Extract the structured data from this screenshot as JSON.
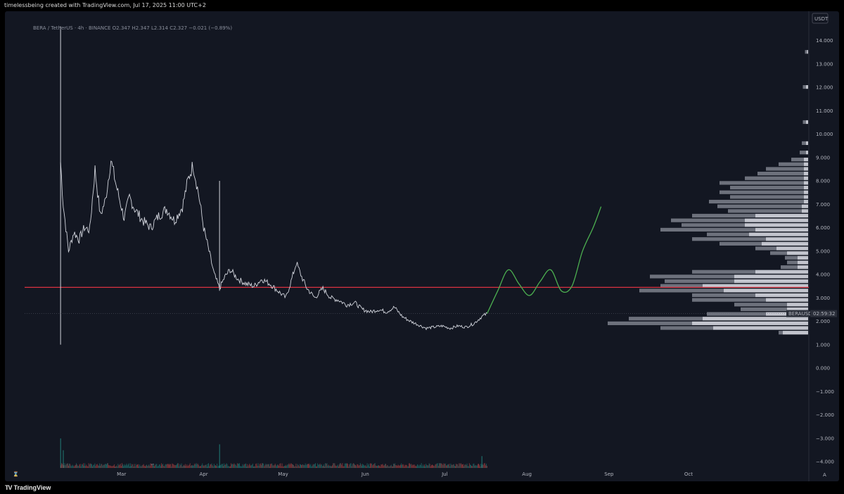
{
  "header": {
    "attribution": "timelessbeing created with TradingView.com, Jul 17, 2025 11:00 UTC+2",
    "symbol_line": "BERA / TetherUS · 4h · BINANCE",
    "ohlc": {
      "open": "O2.347",
      "high": "H2.347",
      "low": "L2.314",
      "close": "C2.327",
      "change": "−0.021 (−0.89%)"
    }
  },
  "price_axis": {
    "currency_label": "USDT",
    "last_price_label": "BERAUSDT",
    "countdown": "02:59:32"
  },
  "footer": {
    "logo_mark": "TV",
    "logo_text": "TradingView"
  },
  "colors": {
    "background": "#131722",
    "price_line": "#d1d4dc",
    "projection": "#4caf50",
    "support_line": "#f23645",
    "profile_up": "#d1d4dc",
    "profile_down": "#787b86",
    "volume_up": "#26a69a",
    "volume_down": "#ef5350"
  },
  "chart_data": {
    "type": "line",
    "interval": "4h",
    "x_axis": {
      "ticks": [
        "Mar",
        "Apr",
        "May",
        "Jun",
        "Jul",
        "Aug",
        "Sep",
        "Oct"
      ],
      "tick_dates": [
        "2025-03-01",
        "2025-04-01",
        "2025-05-01",
        "2025-06-01",
        "2025-07-01",
        "2025-08-01",
        "2025-09-01",
        "2025-10-01"
      ]
    },
    "y_axis": {
      "ticks": [
        14,
        13,
        12,
        11,
        10,
        9,
        8,
        7,
        6,
        5,
        4,
        3,
        2,
        1,
        0,
        -1,
        -2,
        -3,
        -4
      ],
      "tick_labels": [
        "14.000",
        "13.000",
        "12.000",
        "11.000",
        "10.000",
        "9.000",
        "8.000",
        "7.000",
        "6.000",
        "5.000",
        "4.000",
        "3.000",
        "2.000",
        "1.000",
        "0.000",
        "−1.000",
        "−2.000",
        "−3.000",
        "−4.000"
      ],
      "range": [
        -4.5,
        14.5
      ]
    },
    "listing_wick": {
      "date": "2025-02-06",
      "high": 14.6,
      "low": 1.0
    },
    "secondary_wick": {
      "date": "2025-04-07",
      "high": 8.0,
      "low": 3.3
    },
    "price_series": {
      "name": "BERAUSDT",
      "points": [
        [
          "2025-02-06",
          8.8
        ],
        [
          "2025-02-07",
          7.0
        ],
        [
          "2025-02-09",
          5.0
        ],
        [
          "2025-02-11",
          5.8
        ],
        [
          "2025-02-13",
          5.5
        ],
        [
          "2025-02-15",
          6.0
        ],
        [
          "2025-02-17",
          5.9
        ],
        [
          "2025-02-19",
          8.5
        ],
        [
          "2025-02-21",
          6.5
        ],
        [
          "2025-02-23",
          7.2
        ],
        [
          "2025-02-25",
          8.9
        ],
        [
          "2025-02-27",
          7.8
        ],
        [
          "2025-03-02",
          6.4
        ],
        [
          "2025-03-04",
          7.3
        ],
        [
          "2025-03-06",
          6.8
        ],
        [
          "2025-03-09",
          6.3
        ],
        [
          "2025-03-12",
          6.0
        ],
        [
          "2025-03-15",
          6.5
        ],
        [
          "2025-03-18",
          6.8
        ],
        [
          "2025-03-21",
          6.3
        ],
        [
          "2025-03-24",
          6.9
        ],
        [
          "2025-03-26",
          8.0
        ],
        [
          "2025-03-28",
          8.7
        ],
        [
          "2025-03-30",
          7.5
        ],
        [
          "2025-04-01",
          6.0
        ],
        [
          "2025-04-03",
          5.0
        ],
        [
          "2025-04-05",
          4.0
        ],
        [
          "2025-04-07",
          3.4
        ],
        [
          "2025-04-09",
          3.9
        ],
        [
          "2025-04-11",
          4.2
        ],
        [
          "2025-04-14",
          3.8
        ],
        [
          "2025-04-17",
          3.6
        ],
        [
          "2025-04-20",
          3.5
        ],
        [
          "2025-04-23",
          3.8
        ],
        [
          "2025-04-26",
          3.6
        ],
        [
          "2025-04-29",
          3.3
        ],
        [
          "2025-05-02",
          3.0
        ],
        [
          "2025-05-04",
          3.7
        ],
        [
          "2025-05-06",
          4.5
        ],
        [
          "2025-05-08",
          3.9
        ],
        [
          "2025-05-10",
          3.4
        ],
        [
          "2025-05-13",
          3.0
        ],
        [
          "2025-05-16",
          3.4
        ],
        [
          "2025-05-19",
          3.0
        ],
        [
          "2025-05-22",
          2.9
        ],
        [
          "2025-05-25",
          2.7
        ],
        [
          "2025-05-28",
          2.8
        ],
        [
          "2025-05-31",
          2.5
        ],
        [
          "2025-06-03",
          2.4
        ],
        [
          "2025-06-06",
          2.5
        ],
        [
          "2025-06-09",
          2.4
        ],
        [
          "2025-06-12",
          2.6
        ],
        [
          "2025-06-15",
          2.2
        ],
        [
          "2025-06-18",
          2.0
        ],
        [
          "2025-06-21",
          1.85
        ],
        [
          "2025-06-24",
          1.7
        ],
        [
          "2025-06-27",
          1.75
        ],
        [
          "2025-06-30",
          1.8
        ],
        [
          "2025-07-03",
          1.7
        ],
        [
          "2025-07-06",
          1.8
        ],
        [
          "2025-07-09",
          1.75
        ],
        [
          "2025-07-12",
          1.9
        ],
        [
          "2025-07-15",
          2.2
        ],
        [
          "2025-07-17",
          2.33
        ]
      ]
    },
    "projection_path": {
      "points": [
        [
          "2025-07-17",
          2.33
        ],
        [
          "2025-07-21",
          3.3
        ],
        [
          "2025-07-25",
          4.2
        ],
        [
          "2025-07-29",
          3.6
        ],
        [
          "2025-08-02",
          3.1
        ],
        [
          "2025-08-06",
          3.7
        ],
        [
          "2025-08-10",
          4.2
        ],
        [
          "2025-08-14",
          3.3
        ],
        [
          "2025-08-18",
          3.5
        ],
        [
          "2025-08-22",
          5.0
        ],
        [
          "2025-08-26",
          6.0
        ],
        [
          "2025-08-29",
          6.9
        ]
      ]
    },
    "support_level": 3.45,
    "last_price": 2.327,
    "volume_profile": {
      "rows": [
        {
          "price": 1.5,
          "up": 0.12,
          "down": 0.02
        },
        {
          "price": 1.7,
          "up": 0.45,
          "down": 0.25
        },
        {
          "price": 1.9,
          "up": 0.55,
          "down": 0.4
        },
        {
          "price": 2.1,
          "up": 0.5,
          "down": 0.35
        },
        {
          "price": 2.3,
          "up": 0.2,
          "down": 0.28
        },
        {
          "price": 2.5,
          "up": 0.1,
          "down": 0.22
        },
        {
          "price": 2.7,
          "up": 0.1,
          "down": 0.25
        },
        {
          "price": 2.9,
          "up": 0.2,
          "down": 0.35
        },
        {
          "price": 3.1,
          "up": 0.25,
          "down": 0.3
        },
        {
          "price": 3.3,
          "up": 0.4,
          "down": 0.4
        },
        {
          "price": 3.5,
          "up": 0.5,
          "down": 0.2
        },
        {
          "price": 3.7,
          "up": 0.35,
          "down": 0.33
        },
        {
          "price": 3.9,
          "up": 0.35,
          "down": 0.4
        },
        {
          "price": 4.1,
          "up": 0.25,
          "down": 0.3
        },
        {
          "price": 4.3,
          "up": 0.05,
          "down": 0.08
        },
        {
          "price": 4.5,
          "up": 0.05,
          "down": 0.05
        },
        {
          "price": 4.7,
          "up": 0.05,
          "down": 0.06
        },
        {
          "price": 4.9,
          "up": 0.1,
          "down": 0.08
        },
        {
          "price": 5.1,
          "up": 0.15,
          "down": 0.1
        },
        {
          "price": 5.3,
          "up": 0.22,
          "down": 0.2
        },
        {
          "price": 5.5,
          "up": 0.2,
          "down": 0.35
        },
        {
          "price": 5.7,
          "up": 0.28,
          "down": 0.2
        },
        {
          "price": 5.9,
          "up": 0.25,
          "down": 0.45
        },
        {
          "price": 6.1,
          "up": 0.3,
          "down": 0.3
        },
        {
          "price": 6.3,
          "up": 0.3,
          "down": 0.35
        },
        {
          "price": 6.5,
          "up": 0.25,
          "down": 0.3
        },
        {
          "price": 6.7,
          "up": 0.03,
          "down": 0.35
        },
        {
          "price": 6.9,
          "up": 0.03,
          "down": 0.4
        },
        {
          "price": 7.1,
          "up": 0.02,
          "down": 0.45
        },
        {
          "price": 7.3,
          "up": 0.02,
          "down": 0.35
        },
        {
          "price": 7.5,
          "up": 0.02,
          "down": 0.4
        },
        {
          "price": 7.7,
          "up": 0.02,
          "down": 0.35
        },
        {
          "price": 7.9,
          "up": 0.02,
          "down": 0.4
        },
        {
          "price": 8.1,
          "up": 0.02,
          "down": 0.28
        },
        {
          "price": 8.3,
          "up": 0.02,
          "down": 0.22
        },
        {
          "price": 8.5,
          "up": 0.02,
          "down": 0.18
        },
        {
          "price": 8.7,
          "up": 0.02,
          "down": 0.12
        },
        {
          "price": 8.9,
          "up": 0.02,
          "down": 0.06
        },
        {
          "price": 9.2,
          "up": 0.01,
          "down": 0.03
        },
        {
          "price": 9.6,
          "up": 0.01,
          "down": 0.02
        },
        {
          "price": 10.5,
          "up": 0.01,
          "down": 0.015
        },
        {
          "price": 12.0,
          "up": 0.01,
          "down": 0.015
        },
        {
          "price": 13.5,
          "up": 0.005,
          "down": 0.01
        }
      ]
    },
    "volume_spikes": [
      {
        "date": "2025-02-06",
        "value": 1.0
      },
      {
        "date": "2025-02-07",
        "value": 0.6
      },
      {
        "date": "2025-04-07",
        "value": 0.8
      },
      {
        "date": "2025-07-15",
        "value": 0.4
      }
    ]
  }
}
